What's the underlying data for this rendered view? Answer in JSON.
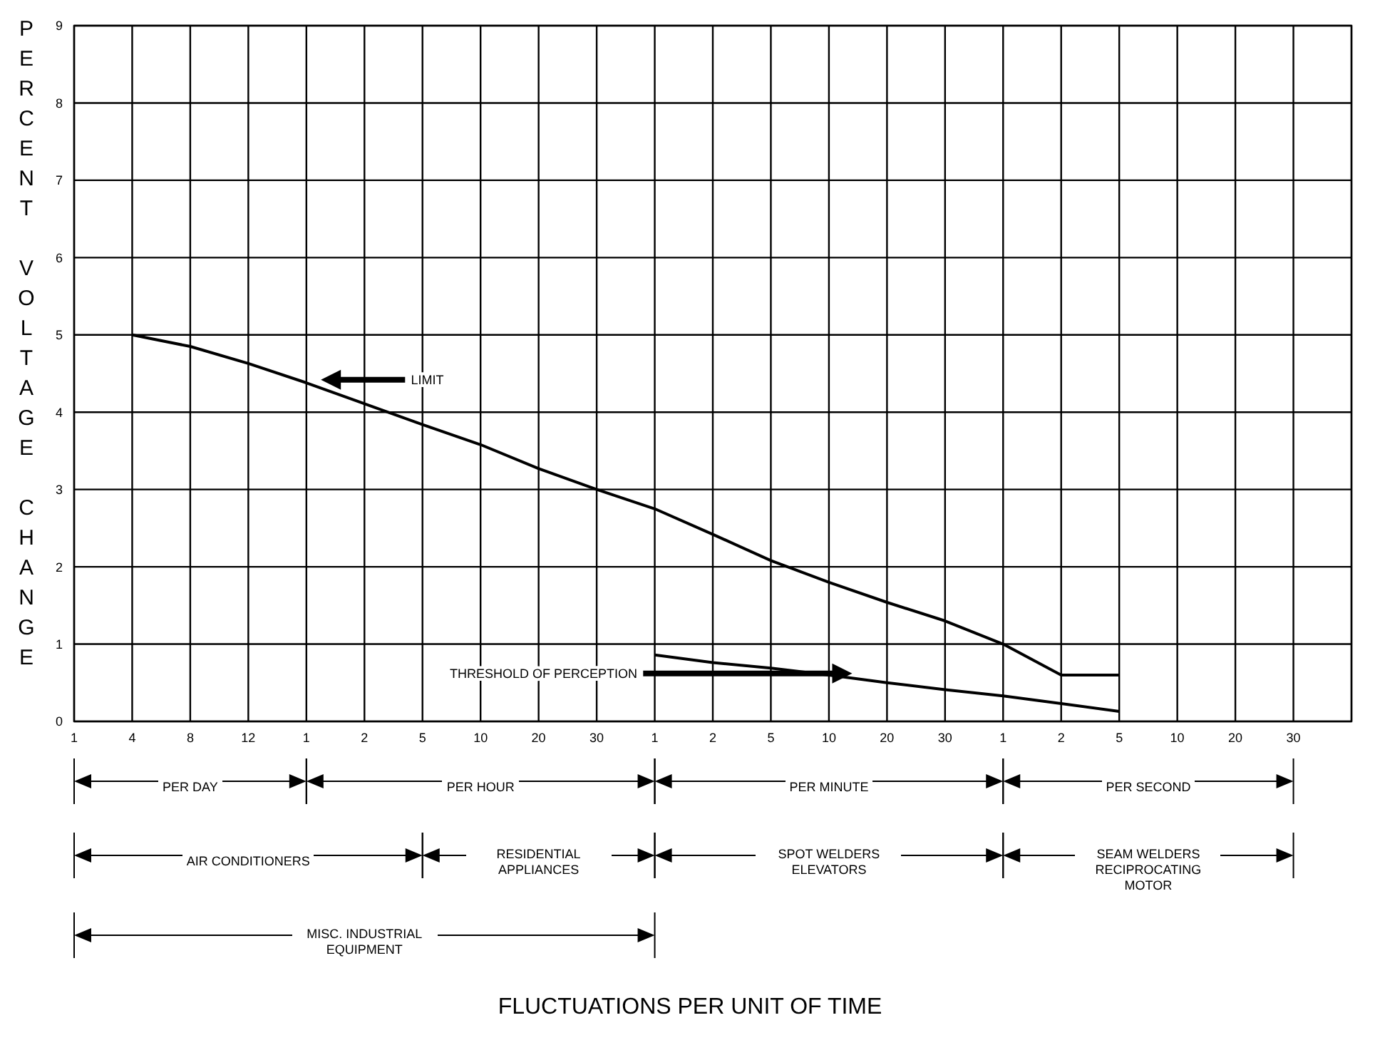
{
  "chart_data": {
    "type": "line",
    "ylabel": "PERCENT VOLTAGE CHANGE",
    "categories": [
      "1",
      "4",
      "8",
      "12",
      "1",
      "2",
      "5",
      "10",
      "20",
      "30",
      "1",
      "2",
      "5",
      "10",
      "20",
      "30",
      "1",
      "2",
      "5",
      "10",
      "20",
      "30",
      null
    ],
    "series": [
      {
        "name": "LIMIT",
        "color": "#000000",
        "values": [
          null,
          5.0,
          4.85,
          4.63,
          4.38,
          4.11,
          3.84,
          3.58,
          3.27,
          3.0,
          2.75,
          2.42,
          2.08,
          1.8,
          1.54,
          1.3,
          1.0,
          0.6,
          0.6,
          null,
          null,
          null,
          null
        ]
      },
      {
        "name": "THRESHOLD OF PERCEPTION",
        "color": "#000000",
        "values": [
          null,
          null,
          null,
          null,
          null,
          null,
          null,
          null,
          null,
          null,
          0.86,
          0.76,
          0.69,
          0.6,
          0.5,
          0.41,
          0.33,
          0.23,
          0.13,
          null,
          null,
          null,
          null
        ]
      }
    ],
    "ylim": [
      0,
      9
    ],
    "yticks": [
      0,
      1,
      2,
      3,
      4,
      5,
      6,
      7,
      8,
      9
    ],
    "grid": true,
    "legend": false,
    "annotations": [
      "PER DAY",
      "PER HOUR",
      "PER MINUTE",
      "PER SECOND",
      "AIR CONDITIONERS",
      "RESIDENTIAL APPLIANCES",
      "SPOT WELDERS ELEVATORS",
      "SEAM WELDERS RECIPROCATING MOTOR",
      "MISC. INDUSTRIAL EQUIPMENT",
      "FLUCTUATIONS PER UNIT OF TIME"
    ]
  }
}
